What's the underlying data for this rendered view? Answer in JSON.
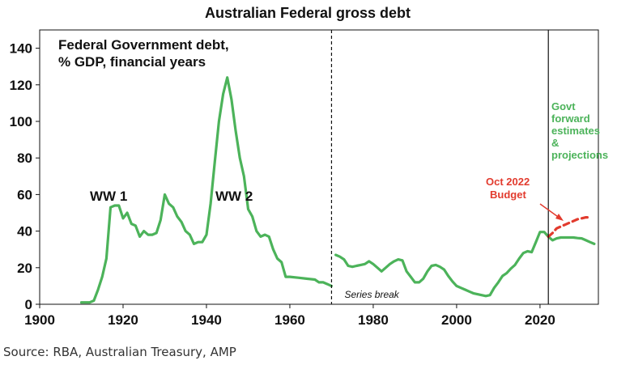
{
  "colors": {
    "line": "#4cb35a",
    "budget": "#e23b2e",
    "text": "#111111",
    "forward_label": "#4cb35a",
    "budget_label": "#e23b2e"
  },
  "source": "Source: RBA, Australian Treasury, AMP",
  "chart_data": {
    "type": "line",
    "title": "Australian Federal gross debt",
    "inner_title_line1": "Federal Government debt,",
    "inner_title_line2": "% GDP, financial years",
    "xlabel": "",
    "ylabel": "",
    "xlim": [
      1900,
      2034
    ],
    "ylim": [
      0,
      150
    ],
    "xticks": [
      1900,
      1920,
      1940,
      1960,
      1980,
      2000,
      2020
    ],
    "yticks": [
      0,
      20,
      40,
      60,
      80,
      100,
      120,
      140
    ],
    "grid": false,
    "series_break_label": "Series break",
    "series_break_year": 1970,
    "budget_marker_year": 2022,
    "annotations": {
      "ww1": "WW 1",
      "ww2": "WW 2",
      "budget_line1": "Oct 2022",
      "budget_line2": "Budget",
      "forward": [
        "Govt",
        "forward",
        "estimates",
        "&",
        "projections"
      ]
    },
    "series": [
      {
        "style": "solid",
        "x": [
          1910,
          1912,
          1913,
          1914,
          1915,
          1916,
          1917,
          1918,
          1919,
          1920,
          1921,
          1922,
          1923,
          1924,
          1925,
          1926,
          1927,
          1928,
          1929,
          1930,
          1931,
          1932,
          1933,
          1934,
          1935,
          1936,
          1937,
          1938,
          1939,
          1940,
          1941,
          1942,
          1943,
          1944,
          1945,
          1946,
          1947,
          1948,
          1949,
          1950,
          1951,
          1952,
          1953,
          1954,
          1955,
          1956,
          1957,
          1958,
          1959,
          1960,
          1962,
          1964,
          1966,
          1967,
          1968,
          1969,
          1970
        ],
        "y": [
          1,
          1,
          2,
          8,
          15,
          25,
          53,
          54,
          54,
          47,
          50,
          44,
          43,
          37,
          40,
          38,
          38,
          39,
          46,
          60,
          55,
          53,
          48,
          45,
          40,
          38,
          33,
          34,
          34,
          38,
          55,
          78,
          100,
          115,
          124,
          112,
          95,
          80,
          70,
          52,
          48,
          40,
          37,
          38,
          37,
          30,
          25,
          23,
          15,
          15,
          14.5,
          14,
          13.5,
          12,
          12,
          11,
          10
        ]
      },
      {
        "style": "solid",
        "x": [
          1971,
          1972,
          1973,
          1974,
          1975,
          1976,
          1977,
          1978,
          1979,
          1980,
          1981,
          1982,
          1983,
          1984,
          1985,
          1986,
          1987,
          1988,
          1989,
          1990,
          1991,
          1992,
          1993,
          1994,
          1995,
          1996,
          1997,
          1998,
          1999,
          2000,
          2001,
          2002,
          2003,
          2004,
          2005,
          2006,
          2007,
          2008,
          2009,
          2010,
          2011,
          2012,
          2013,
          2014,
          2015,
          2016,
          2017,
          2018,
          2019,
          2020,
          2021,
          2022,
          2023,
          2024,
          2025,
          2026,
          2027,
          2028,
          2029,
          2030,
          2031,
          2032,
          2033
        ],
        "y": [
          27,
          26,
          24.5,
          21,
          20.5,
          21,
          21.5,
          22,
          23.5,
          22,
          20,
          18,
          20,
          22,
          23.5,
          24.5,
          24,
          18,
          15,
          12,
          12,
          14,
          18,
          21,
          21.5,
          20.5,
          19,
          15.5,
          12.5,
          10,
          9,
          8,
          7,
          6,
          5.5,
          5,
          4.5,
          5,
          9,
          12,
          15.5,
          17,
          19.5,
          21.5,
          25,
          28,
          29,
          28.5,
          34,
          39.5,
          39.5,
          37,
          35,
          36,
          36.5,
          36.5,
          36.5,
          36.5,
          36.2,
          36,
          35,
          34,
          33
        ]
      },
      {
        "style": "dashed",
        "color_key": "budget",
        "x": [
          2022,
          2023,
          2024,
          2025,
          2026,
          2027,
          2028,
          2029,
          2030,
          2031,
          2032
        ],
        "y": [
          37,
          39,
          41.5,
          42.5,
          43.5,
          44.5,
          45.5,
          46.5,
          47,
          47.5,
          47.5
        ]
      }
    ]
  }
}
